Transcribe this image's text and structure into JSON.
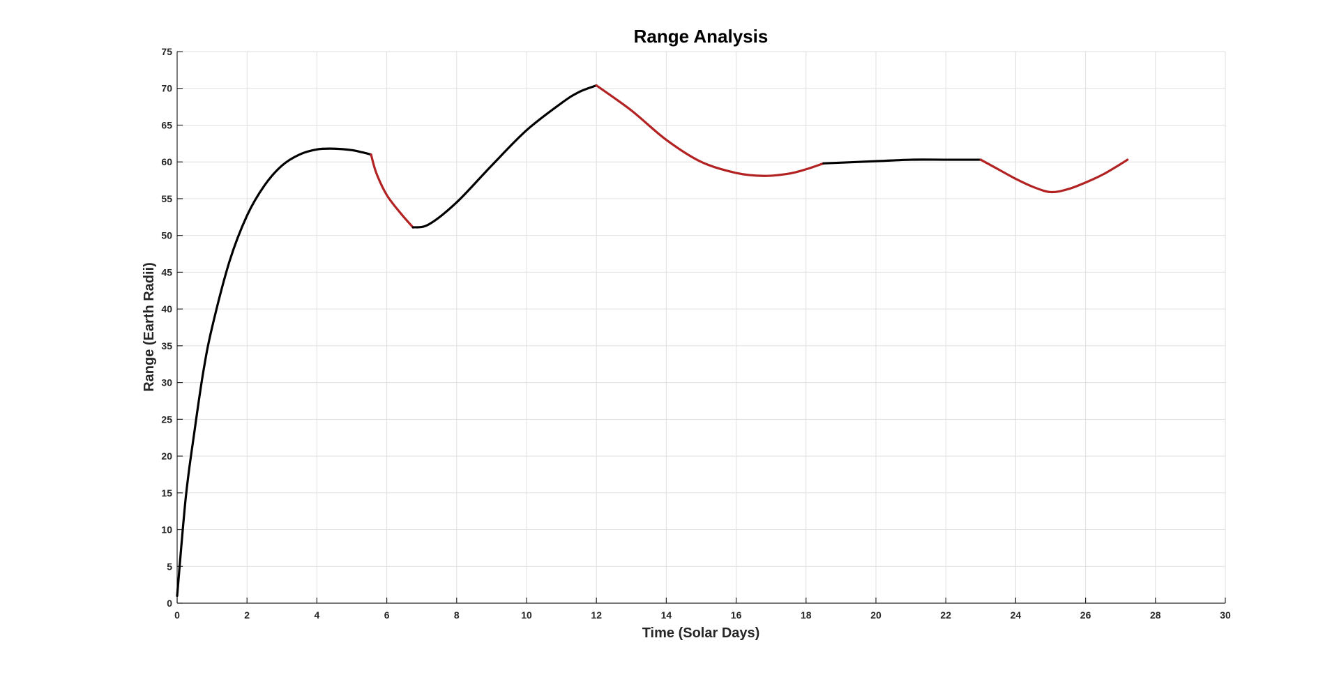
{
  "chart_data": {
    "type": "line",
    "title": "Range Analysis",
    "xlabel": "Time (Solar Days)",
    "ylabel": "Range (Earth Radii)",
    "xlim": [
      0,
      30
    ],
    "ylim": [
      0,
      75
    ],
    "xticks": [
      0,
      2,
      4,
      6,
      8,
      10,
      12,
      14,
      16,
      18,
      20,
      22,
      24,
      26,
      28,
      30
    ],
    "yticks": [
      0,
      5,
      10,
      15,
      20,
      25,
      30,
      35,
      40,
      45,
      50,
      55,
      60,
      65,
      70,
      75
    ],
    "grid": true,
    "legend": "none",
    "colors": {
      "black_segment": "#000000",
      "red_segment": "#b22222"
    },
    "series": [
      {
        "color": "#000000",
        "x": [
          0,
          0.25,
          0.5,
          0.75,
          1.0,
          1.5,
          2.0,
          2.5,
          3.0,
          3.5,
          4.0,
          4.5,
          5.0,
          5.3,
          5.55
        ],
        "y": [
          1,
          14.5,
          23.5,
          31.5,
          37.5,
          46.5,
          52.7,
          56.8,
          59.5,
          61.0,
          61.7,
          61.8,
          61.6,
          61.3,
          61.0
        ]
      },
      {
        "color": "#b22222",
        "x": [
          5.55,
          5.7,
          6.0,
          6.4,
          6.75
        ],
        "y": [
          61.0,
          58.5,
          55.5,
          53.0,
          51.1
        ]
      },
      {
        "color": "#000000",
        "x": [
          6.75,
          7.2,
          8.0,
          9.0,
          10.0,
          11.0,
          11.5,
          12.0
        ],
        "y": [
          51.1,
          51.5,
          54.5,
          59.5,
          64.3,
          68.0,
          69.5,
          70.4
        ]
      },
      {
        "color": "#b22222",
        "x": [
          12.0,
          13.0,
          14.0,
          15.0,
          16.0,
          16.8,
          17.5,
          18.0,
          18.5
        ],
        "y": [
          70.4,
          67.0,
          63.0,
          60.0,
          58.5,
          58.1,
          58.4,
          59.0,
          59.8
        ]
      },
      {
        "color": "#000000",
        "x": [
          18.5,
          20.0,
          21.0,
          22.0,
          23.0
        ],
        "y": [
          59.8,
          60.1,
          60.3,
          60.3,
          60.3
        ]
      },
      {
        "color": "#b22222",
        "x": [
          23.0,
          23.5,
          24.0,
          24.5,
          25.0,
          25.5,
          26.0,
          26.5,
          27.0,
          27.2
        ],
        "y": [
          60.3,
          59.0,
          57.7,
          56.6,
          55.9,
          56.3,
          57.2,
          58.3,
          59.7,
          60.3
        ]
      }
    ]
  }
}
